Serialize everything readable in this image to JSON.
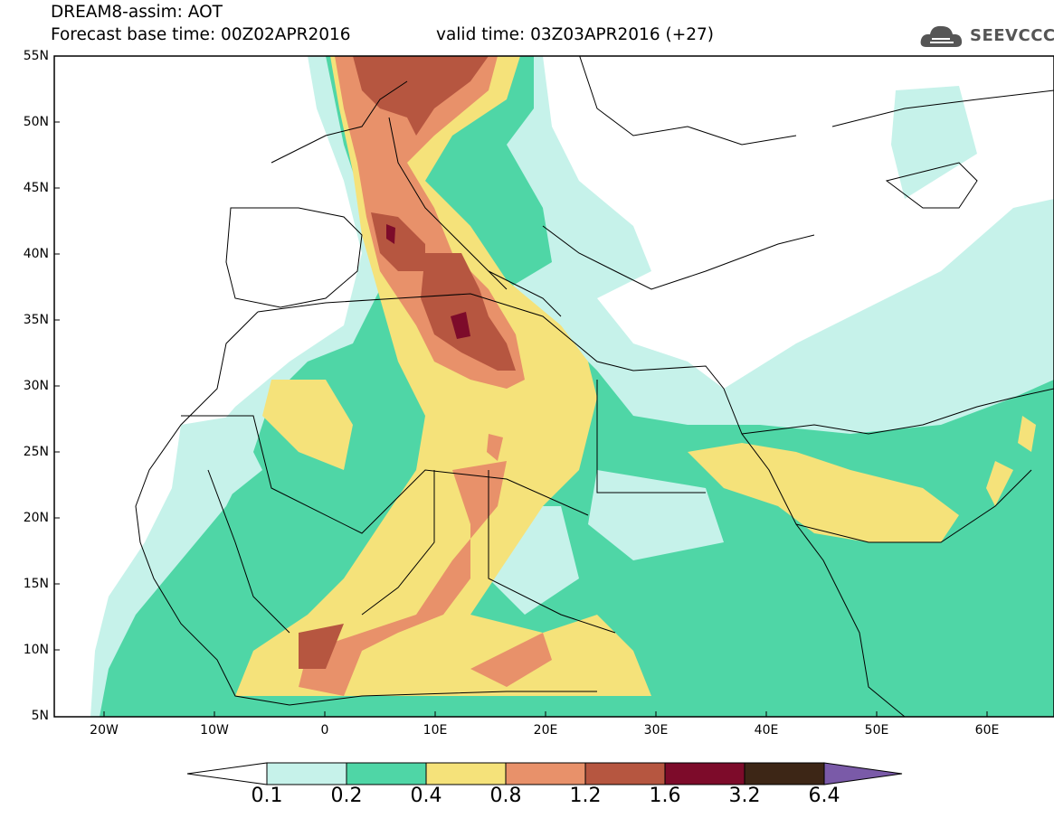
{
  "header": {
    "title": "DREAM8-assim: AOT",
    "base_time": "Forecast base time: 00Z02APR2016",
    "valid_time": "valid time: 03Z03APR2016 (+27)",
    "logo_text": "SEEVCCC"
  },
  "axes": {
    "lat_labels": [
      "55N",
      "50N",
      "45N",
      "40N",
      "35N",
      "30N",
      "25N",
      "20N",
      "15N",
      "10N",
      "5N"
    ],
    "lon_labels": [
      "20W",
      "10W",
      "0",
      "10E",
      "20E",
      "30E",
      "40E",
      "50E",
      "60E"
    ],
    "lat_range": [
      5,
      55
    ],
    "lon_range": [
      -25,
      65
    ]
  },
  "colorbar": {
    "labels": [
      "0.1",
      "0.2",
      "0.4",
      "0.8",
      "1.2",
      "1.6",
      "3.2",
      "6.4"
    ],
    "colors": [
      "#c6f2ea",
      "#4fd6a6",
      "#f5e27a",
      "#e8916a",
      "#b65640",
      "#7d0b2a",
      "#3d2616",
      "#7a5aa8"
    ],
    "under_color": "#ffffff"
  },
  "map": {
    "field": "Aerosol Optical Thickness (AOT)",
    "colors": {
      "low": "#c6f2ea",
      "mid": "#4fd6a6",
      "moderate": "#f5e27a",
      "high": "#e8916a",
      "very_high": "#b65640",
      "extreme": "#7d0b2a"
    }
  }
}
